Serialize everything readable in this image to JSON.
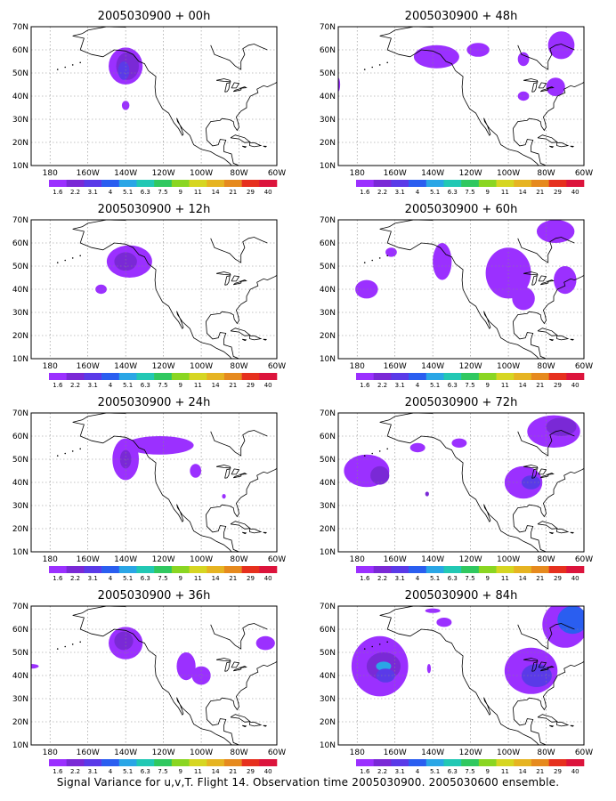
{
  "caption": "Signal Variance for u,v,T. Flight 14. Observation time 2005030900. 2005030600 ensemble.",
  "colorbar": {
    "labels": [
      "1.6",
      "2.2",
      "3.1",
      "4",
      "5.1",
      "6.3",
      "7.5",
      "9",
      "11",
      "14",
      "21",
      "29",
      "40"
    ],
    "colors": [
      "#9b30ff",
      "#7a29d6",
      "#5a3ae8",
      "#2a5ef0",
      "#2aa6e6",
      "#22c8b4",
      "#30c860",
      "#8ad622",
      "#d6d622",
      "#e6b422",
      "#e68a1e",
      "#e6301e",
      "#dc143c"
    ]
  },
  "axes": {
    "x_ticks": [
      "180",
      "160W",
      "140W",
      "120W",
      "100W",
      "80W",
      "60W"
    ],
    "y_ticks": [
      "10N",
      "20N",
      "30N",
      "40N",
      "50N",
      "60N",
      "70N"
    ]
  },
  "chart_data": [
    {
      "type": "heatmap",
      "title": "2005030900  + 00h",
      "levels": [
        {
          "lon": -138,
          "lat": 52,
          "value": 2.2
        },
        {
          "lon": -137,
          "lat": 56,
          "value": 3.1
        },
        {
          "lon": -140,
          "lat": 36,
          "value": 1.6
        }
      ]
    },
    {
      "type": "heatmap",
      "title": "2005030900  + 48h",
      "levels": [
        {
          "lon": -138,
          "lat": 58,
          "value": 2.2
        },
        {
          "lon": -85,
          "lat": 55,
          "value": 1.6
        },
        {
          "lon": -78,
          "lat": 40,
          "value": 1.6
        }
      ]
    },
    {
      "type": "heatmap",
      "title": "2005030900  + 12h",
      "levels": [
        {
          "lon": -138,
          "lat": 52,
          "value": 2.2
        },
        {
          "lon": -152,
          "lat": 40,
          "value": 1.6
        }
      ]
    },
    {
      "type": "heatmap",
      "title": "2005030900  + 60h",
      "levels": [
        {
          "lon": -100,
          "lat": 45,
          "value": 2.2
        },
        {
          "lon": -175,
          "lat": 40,
          "value": 2.2
        },
        {
          "lon": -68,
          "lat": 45,
          "value": 1.6
        }
      ]
    },
    {
      "type": "heatmap",
      "title": "2005030900  + 24h",
      "levels": [
        {
          "lon": -142,
          "lat": 50,
          "value": 2.2
        },
        {
          "lon": -122,
          "lat": 55,
          "value": 1.6
        }
      ]
    },
    {
      "type": "heatmap",
      "title": "2005030900  + 72h",
      "levels": [
        {
          "lon": -170,
          "lat": 43,
          "value": 3.1
        },
        {
          "lon": -88,
          "lat": 40,
          "value": 3.1
        },
        {
          "lon": -70,
          "lat": 64,
          "value": 3.1
        }
      ]
    },
    {
      "type": "heatmap",
      "title": "2005030900  + 36h",
      "levels": [
        {
          "lon": -142,
          "lat": 55,
          "value": 3.1
        },
        {
          "lon": -110,
          "lat": 43,
          "value": 1.6
        },
        {
          "lon": -75,
          "lat": 50,
          "value": 1.6
        }
      ]
    },
    {
      "type": "heatmap",
      "title": "2005030900  + 84h",
      "levels": [
        {
          "lon": -168,
          "lat": 44,
          "value": 4
        },
        {
          "lon": -88,
          "lat": 40,
          "value": 3.1
        },
        {
          "lon": -70,
          "lat": 62,
          "value": 3.1
        }
      ]
    }
  ]
}
